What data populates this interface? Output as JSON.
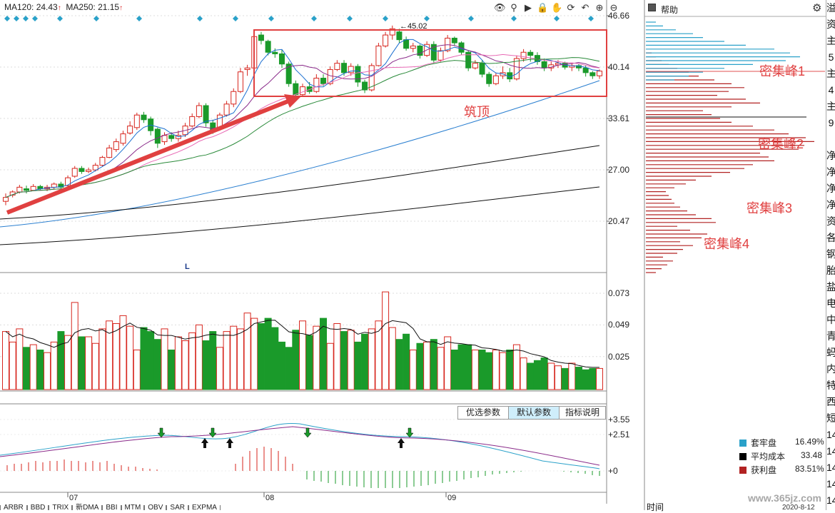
{
  "header": {
    "ma120_label": "MA120: 24.43",
    "ma250_label": "MA250: 21.15",
    "up_mark": "↑",
    "top_marks": [
      "◆",
      "◆",
      "◆",
      "◆",
      "◆",
      "◆",
      "◆",
      "◆",
      "◆",
      "◆",
      "◆",
      "◆",
      "◆",
      "◆",
      "◆",
      "◆",
      "◆",
      "◆",
      "◆",
      "◆"
    ]
  },
  "toolbar": {
    "icons": [
      "eye-icon",
      "search-icon",
      "play-icon",
      "lock-icon",
      "hand-icon",
      "refresh-icon",
      "undo-icon",
      "zoom-in-icon",
      "zoom-out-icon"
    ],
    "glyphs": [
      "👁",
      "⚲",
      "▶",
      "🔒",
      "✋",
      "⟳",
      "↶",
      "⊕",
      "⊖"
    ]
  },
  "price_axis": [
    "46.66",
    "40.14",
    "33.61",
    "27.00",
    "20.47"
  ],
  "volume_axis": [
    "0.073",
    "0.049",
    "0.025"
  ],
  "indicator_axis": [
    "+3.55",
    "+2.51",
    "+0"
  ],
  "time_axis": [
    "07",
    "08",
    "09"
  ],
  "annotations": {
    "top_title": "筑顶",
    "high_price": "45.02",
    "low_marker": "L"
  },
  "indicator_buttons": [
    "优选参数",
    "默认参数",
    "指标说明"
  ],
  "bottom_tabs": [
    "ARBR",
    "BBD",
    "TRIX",
    "新DMA",
    "BBI",
    "MTM",
    "OBV",
    "SAR",
    "EXPMA"
  ],
  "right_panel": {
    "help_label": "帮助",
    "peaks": [
      "密集峰1",
      "密集峰2",
      "密集峰3",
      "密集峰4"
    ],
    "legend": [
      {
        "label": "套牢盘",
        "value": "16.49%",
        "color": "#2aa1c9"
      },
      {
        "label": "平均成本",
        "value": "33.48",
        "color": "#000000"
      },
      {
        "label": "获利盘",
        "value": "83.51%",
        "color": "#b22222"
      }
    ],
    "footer_time": "时间",
    "footer_date": "2020-8-12",
    "watermark": "www.365jz.com"
  },
  "edge_column": [
    "溢",
    "资",
    "主",
    "5",
    "主",
    "4",
    "主",
    "9",
    "",
    "净",
    "净",
    "净",
    "净",
    "资",
    "各",
    "钢",
    "胎",
    "盐",
    "电",
    "中",
    "青",
    "蚂",
    "内",
    "特",
    "西",
    "短",
    "14",
    "14",
    "14",
    "14",
    "14"
  ],
  "colors": {
    "up": "#d7261e",
    "down": "#1a9a2a",
    "chip_red": "#b22222",
    "chip_blue": "#2aa1c9",
    "annotation_red": "#e04040"
  },
  "price_data": {
    "range": [
      16.5,
      48.5
    ],
    "candles": [
      [
        23.0,
        23.5,
        22.5,
        24.0
      ],
      [
        23.8,
        24.2,
        23.5,
        24.4
      ],
      [
        24.2,
        24.8,
        24.0,
        25.1
      ],
      [
        24.6,
        24.4,
        24.0,
        25.0
      ],
      [
        24.4,
        24.9,
        24.3,
        25.2
      ],
      [
        24.9,
        24.6,
        24.4,
        25.1
      ],
      [
        24.6,
        24.8,
        24.3,
        25.1
      ],
      [
        24.8,
        25.2,
        24.5,
        25.4
      ],
      [
        25.2,
        24.8,
        24.6,
        25.5
      ],
      [
        25.0,
        26.0,
        24.9,
        26.3
      ],
      [
        26.2,
        27.2,
        26.0,
        27.5
      ],
      [
        27.2,
        26.8,
        26.5,
        27.5
      ],
      [
        26.8,
        27.0,
        26.6,
        27.3
      ],
      [
        27.0,
        27.6,
        26.8,
        27.9
      ],
      [
        27.6,
        28.6,
        27.4,
        28.8
      ],
      [
        28.6,
        29.8,
        28.5,
        30.2
      ],
      [
        29.6,
        30.6,
        29.3,
        31.0
      ],
      [
        30.4,
        31.6,
        30.1,
        32.0
      ],
      [
        31.7,
        32.6,
        31.5,
        33.2
      ],
      [
        32.4,
        34.0,
        32.1,
        34.3
      ],
      [
        34.0,
        33.4,
        33.0,
        34.4
      ],
      [
        33.5,
        32.0,
        31.4,
        33.8
      ],
      [
        32.2,
        30.4,
        29.8,
        32.4
      ],
      [
        30.6,
        31.4,
        30.2,
        31.8
      ],
      [
        31.4,
        31.0,
        30.6,
        31.8
      ],
      [
        31.0,
        31.4,
        30.6,
        32.0
      ],
      [
        31.5,
        32.6,
        31.2,
        33.0
      ],
      [
        32.6,
        33.8,
        32.4,
        34.2
      ],
      [
        33.8,
        35.2,
        33.6,
        35.6
      ],
      [
        35.2,
        33.0,
        32.5,
        35.5
      ],
      [
        33.0,
        32.0,
        31.6,
        33.4
      ],
      [
        32.2,
        34.0,
        32.0,
        34.3
      ],
      [
        34.0,
        35.4,
        33.8,
        35.8
      ],
      [
        35.4,
        37.0,
        35.0,
        37.4
      ],
      [
        37.0,
        39.5,
        36.8,
        40.0
      ],
      [
        39.8,
        40.0,
        39.0,
        40.4
      ],
      [
        40.0,
        44.0,
        39.8,
        44.4
      ],
      [
        44.2,
        43.5,
        43.0,
        44.6
      ],
      [
        43.4,
        42.0,
        41.6,
        43.6
      ],
      [
        42.0,
        41.8,
        41.3,
        42.5
      ],
      [
        41.8,
        40.5,
        40.0,
        42.3
      ],
      [
        40.5,
        38.0,
        37.6,
        40.8
      ],
      [
        38.0,
        36.6,
        36.0,
        38.4
      ],
      [
        36.6,
        37.6,
        36.3,
        38.0
      ],
      [
        37.6,
        37.0,
        36.7,
        38.2
      ],
      [
        37.0,
        38.7,
        36.8,
        39.2
      ],
      [
        38.7,
        38.0,
        37.7,
        39.2
      ],
      [
        38.0,
        39.8,
        37.8,
        40.2
      ],
      [
        39.8,
        40.6,
        39.6,
        41.0
      ],
      [
        40.6,
        39.4,
        39.0,
        41.0
      ],
      [
        39.4,
        40.2,
        39.0,
        40.6
      ],
      [
        40.2,
        38.2,
        37.6,
        40.5
      ],
      [
        38.2,
        37.2,
        36.8,
        38.5
      ],
      [
        37.2,
        40.3,
        37.0,
        40.6
      ],
      [
        40.3,
        42.8,
        40.2,
        43.2
      ],
      [
        42.8,
        44.2,
        42.6,
        44.6
      ],
      [
        44.2,
        45.0,
        43.6,
        45.4
      ],
      [
        44.6,
        43.6,
        43.2,
        45.0
      ],
      [
        43.6,
        42.5,
        42.2,
        44.0
      ],
      [
        42.5,
        42.8,
        42.0,
        43.2
      ],
      [
        42.8,
        41.6,
        41.2,
        43.0
      ],
      [
        41.6,
        43.0,
        41.4,
        43.4
      ],
      [
        43.0,
        41.0,
        40.6,
        43.4
      ],
      [
        41.0,
        42.2,
        40.8,
        42.6
      ],
      [
        42.2,
        43.8,
        42.0,
        44.2
      ],
      [
        43.8,
        43.2,
        42.8,
        44.0
      ],
      [
        43.2,
        42.0,
        41.7,
        43.4
      ],
      [
        42.0,
        40.0,
        39.6,
        42.2
      ],
      [
        40.0,
        40.6,
        39.8,
        41.0
      ],
      [
        40.6,
        39.2,
        38.8,
        41.0
      ],
      [
        39.2,
        38.0,
        37.6,
        39.5
      ],
      [
        38.0,
        39.0,
        37.8,
        39.4
      ],
      [
        39.0,
        39.4,
        38.6,
        40.2
      ],
      [
        39.4,
        38.6,
        38.2,
        40.0
      ],
      [
        38.6,
        41.2,
        38.4,
        41.6
      ],
      [
        41.2,
        42.0,
        40.8,
        42.4
      ],
      [
        42.0,
        41.6,
        40.8,
        42.3
      ],
      [
        41.6,
        40.8,
        40.4,
        42.0
      ],
      [
        40.8,
        40.0,
        39.6,
        41.2
      ],
      [
        40.0,
        40.4,
        39.6,
        40.8
      ],
      [
        40.4,
        40.6,
        40.0,
        41.0
      ],
      [
        40.6,
        40.1,
        39.8,
        40.8
      ],
      [
        40.1,
        40.3,
        39.6,
        40.6
      ],
      [
        40.3,
        40.0,
        39.6,
        40.5
      ],
      [
        40.0,
        39.4,
        38.9,
        40.3
      ],
      [
        39.4,
        39.0,
        38.6,
        39.6
      ],
      [
        39.0,
        39.6,
        38.6,
        39.8
      ]
    ]
  },
  "volume_data": {
    "max": 0.08,
    "values": [
      0.044,
      0.036,
      0.046,
      0.032,
      0.034,
      0.03,
      0.028,
      0.036,
      0.044,
      0.041,
      0.066,
      0.04,
      0.04,
      0.035,
      0.046,
      0.052,
      0.05,
      0.056,
      0.048,
      0.03,
      0.047,
      0.044,
      0.038,
      0.046,
      0.03,
      0.04,
      0.037,
      0.043,
      0.049,
      0.037,
      0.044,
      0.032,
      0.044,
      0.048,
      0.046,
      0.058,
      0.054,
      0.05,
      0.054,
      0.047,
      0.036,
      0.032,
      0.045,
      0.052,
      0.041,
      0.048,
      0.054,
      0.035,
      0.05,
      0.044,
      0.045,
      0.036,
      0.042,
      0.046,
      0.052,
      0.074,
      0.047,
      0.038,
      0.042,
      0.03,
      0.035,
      0.036,
      0.038,
      0.032,
      0.04,
      0.03,
      0.034,
      0.034,
      0.03,
      0.03,
      0.028,
      0.03,
      0.028,
      0.03,
      0.034,
      0.024,
      0.02,
      0.022,
      0.024,
      0.02,
      0.018,
      0.016,
      0.02,
      0.017,
      0.015,
      0.016,
      0.016
    ]
  },
  "chip_distribution": {
    "price_range": [
      16.5,
      48.5
    ],
    "red_lengths": [
      14,
      22,
      30,
      38,
      24,
      44,
      52,
      66,
      48,
      78,
      86,
      62,
      44,
      98,
      92,
      70,
      58,
      48,
      40,
      36,
      32,
      28,
      40,
      56,
      70,
      92,
      118,
      138,
      150,
      180,
      172,
      160,
      214,
      222,
      236,
      224,
      200,
      180,
      150,
      120,
      104,
      92,
      80,
      120,
      160,
      140,
      100,
      116,
      138,
      120,
      96,
      74,
      60,
      44,
      32,
      22,
      14,
      8
    ],
    "blue_lengths": [
      40,
      60,
      80,
      110,
      150,
      196,
      216,
      202,
      180,
      140,
      110,
      80,
      66,
      42,
      24,
      14
    ]
  }
}
